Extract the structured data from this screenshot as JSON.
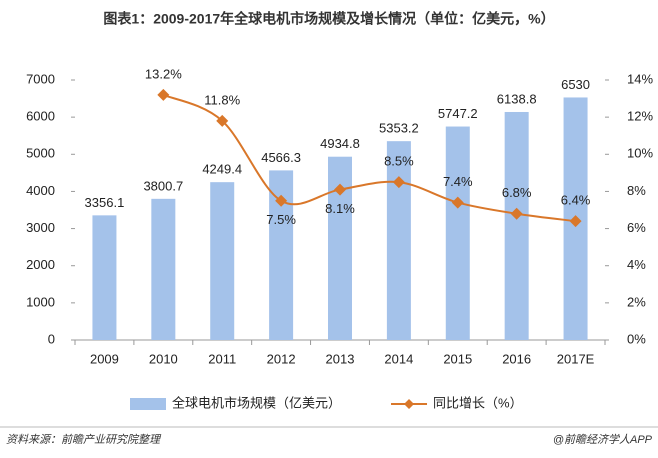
{
  "chart_data": {
    "type": "bar",
    "title": "图表1：2009-2017年全球电机市场规模及增长情况（单位：亿美元，%）",
    "categories": [
      "2009",
      "2010",
      "2011",
      "2012",
      "2013",
      "2014",
      "2015",
      "2016",
      "2017E"
    ],
    "series": [
      {
        "name": "全球电机市场规模（亿美元）",
        "color": "#a4c2ea",
        "values": [
          3356.1,
          3800.7,
          4249.4,
          4566.3,
          4934.8,
          5353.2,
          5747.2,
          6138.8,
          6530
        ]
      },
      {
        "name": "同比增长（%）",
        "color": "#d9772a",
        "type": "line",
        "axis": "y2",
        "values": [
          null,
          13.2,
          11.8,
          7.5,
          8.1,
          8.5,
          7.4,
          6.8,
          6.4
        ],
        "value_labels": [
          null,
          "13.2%",
          "11.8%",
          "7.5%",
          "8.1%",
          "8.5%",
          "7.4%",
          "6.8%",
          "6.4%"
        ]
      }
    ],
    "ylim": [
      0,
      7000
    ],
    "yticks": [
      0,
      1000,
      2000,
      3000,
      4000,
      5000,
      6000,
      7000
    ],
    "y2lim": [
      0,
      14
    ],
    "y2ticks": [
      {
        "value": 0,
        "label": "0%"
      },
      {
        "value": 2,
        "label": "2%"
      },
      {
        "value": 4,
        "label": "4%"
      },
      {
        "value": 6,
        "label": "6%"
      },
      {
        "value": 8,
        "label": "8%"
      },
      {
        "value": 10,
        "label": "10%"
      },
      {
        "value": 12,
        "label": "12%"
      },
      {
        "value": 14,
        "label": "14%"
      }
    ],
    "grid": false,
    "source": "资料来源：前瞻产业研究院整理",
    "credit": "@前瞻经济学人APP"
  }
}
